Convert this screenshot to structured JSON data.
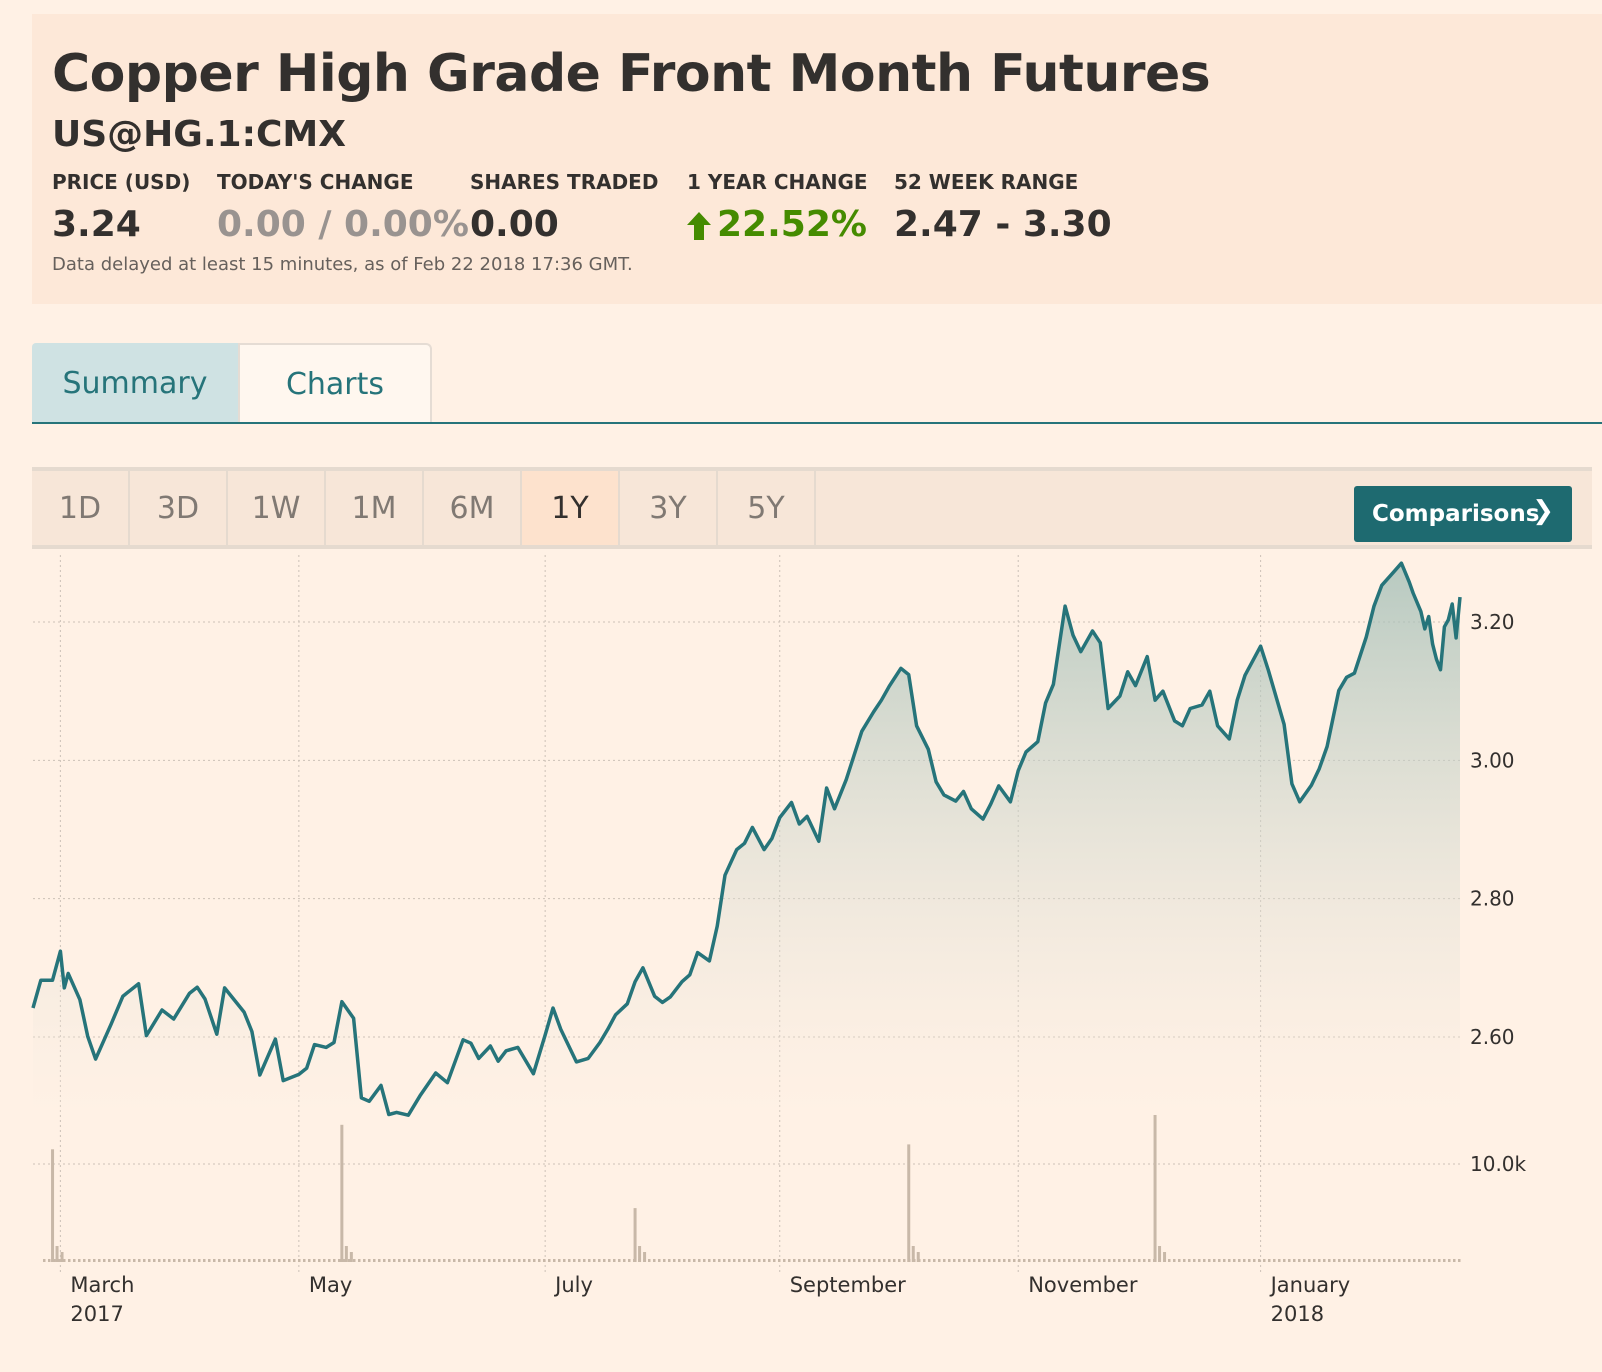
{
  "header": {
    "title": "Copper High Grade Front Month Futures",
    "symbol": "US@HG.1:CMX",
    "stats": {
      "price_label": "PRICE (USD)",
      "price_value": "3.24",
      "change_label": "TODAY'S CHANGE",
      "change_value": "0.00 / 0.00%",
      "shares_label": "SHARES TRADED",
      "shares_value": "0.00",
      "year_label": "1 YEAR CHANGE",
      "year_value": "22.52%",
      "range_label": "52 WEEK RANGE",
      "range_value": "2.47 - 3.30"
    },
    "delayed_note": "Data delayed at least 15 minutes, as of Feb 22 2018 17:36 GMT."
  },
  "tabs": {
    "summary": "Summary",
    "charts": "Charts"
  },
  "ranges": {
    "buttons": [
      "1D",
      "3D",
      "1W",
      "1M",
      "6M",
      "1Y",
      "3Y",
      "5Y"
    ],
    "active": "1Y",
    "comparisons": "Comparisons",
    "comparisons_icon": "chevron-right-icon"
  },
  "colors": {
    "line": "#26747a",
    "accent": "#1e6a70",
    "up": "#458b00",
    "volume": "#c8b8a8"
  },
  "chart_data": {
    "type": "line",
    "title": "",
    "xlabel": "",
    "ylabel": "",
    "ylim": [
      2.47,
      3.32
    ],
    "yticks": [
      2.6,
      2.8,
      3.0,
      3.2
    ],
    "ytick_labels": [
      "2.60",
      "2.80",
      "3.00",
      "3.20"
    ],
    "grid": true,
    "x_start": "2017-02-22",
    "x_end": "2018-02-22",
    "xtick_labels": [
      {
        "date": "2017-03-01",
        "label": "March",
        "sublabel": "2017"
      },
      {
        "date": "2017-05-01",
        "label": "May",
        "sublabel": ""
      },
      {
        "date": "2017-07-03",
        "label": "July",
        "sublabel": ""
      },
      {
        "date": "2017-09-01",
        "label": "September",
        "sublabel": ""
      },
      {
        "date": "2017-11-01",
        "label": "November",
        "sublabel": ""
      },
      {
        "date": "2018-01-02",
        "label": "January",
        "sublabel": "2018"
      }
    ],
    "series": [
      {
        "values": [
          [
            "2017-02-22",
            2.642
          ],
          [
            "2017-02-24",
            2.682
          ],
          [
            "2017-02-27",
            2.682
          ],
          [
            "2017-03-01",
            2.724
          ],
          [
            "2017-03-02",
            2.671
          ],
          [
            "2017-03-03",
            2.692
          ],
          [
            "2017-03-06",
            2.654
          ],
          [
            "2017-03-08",
            2.601
          ],
          [
            "2017-03-10",
            2.568
          ],
          [
            "2017-03-14",
            2.619
          ],
          [
            "2017-03-17",
            2.659
          ],
          [
            "2017-03-21",
            2.677
          ],
          [
            "2017-03-23",
            2.602
          ],
          [
            "2017-03-27",
            2.639
          ],
          [
            "2017-03-30",
            2.626
          ],
          [
            "2017-04-03",
            2.663
          ],
          [
            "2017-04-05",
            2.672
          ],
          [
            "2017-04-07",
            2.655
          ],
          [
            "2017-04-10",
            2.604
          ],
          [
            "2017-04-12",
            2.671
          ],
          [
            "2017-04-17",
            2.636
          ],
          [
            "2017-04-19",
            2.608
          ],
          [
            "2017-04-21",
            2.545
          ],
          [
            "2017-04-25",
            2.597
          ],
          [
            "2017-04-27",
            2.537
          ],
          [
            "2017-05-01",
            2.546
          ],
          [
            "2017-05-03",
            2.555
          ],
          [
            "2017-05-05",
            2.589
          ],
          [
            "2017-05-08",
            2.585
          ],
          [
            "2017-05-10",
            2.592
          ],
          [
            "2017-05-12",
            2.651
          ],
          [
            "2017-05-15",
            2.627
          ],
          [
            "2017-05-17",
            2.512
          ],
          [
            "2017-05-19",
            2.507
          ],
          [
            "2017-05-22",
            2.53
          ],
          [
            "2017-05-24",
            2.488
          ],
          [
            "2017-05-26",
            2.491
          ],
          [
            "2017-05-29",
            2.487
          ],
          [
            "2017-06-01",
            2.515
          ],
          [
            "2017-06-05",
            2.548
          ],
          [
            "2017-06-08",
            2.534
          ],
          [
            "2017-06-12",
            2.596
          ],
          [
            "2017-06-14",
            2.591
          ],
          [
            "2017-06-16",
            2.569
          ],
          [
            "2017-06-19",
            2.587
          ],
          [
            "2017-06-21",
            2.565
          ],
          [
            "2017-06-23",
            2.58
          ],
          [
            "2017-06-26",
            2.585
          ],
          [
            "2017-06-30",
            2.547
          ],
          [
            "2017-07-03",
            2.603
          ],
          [
            "2017-07-05",
            2.642
          ],
          [
            "2017-07-07",
            2.611
          ],
          [
            "2017-07-11",
            2.564
          ],
          [
            "2017-07-14",
            2.569
          ],
          [
            "2017-07-17",
            2.592
          ],
          [
            "2017-07-19",
            2.611
          ],
          [
            "2017-07-21",
            2.632
          ],
          [
            "2017-07-24",
            2.648
          ],
          [
            "2017-07-26",
            2.68
          ],
          [
            "2017-07-28",
            2.7
          ],
          [
            "2017-07-31",
            2.659
          ],
          [
            "2017-08-02",
            2.65
          ],
          [
            "2017-08-04",
            2.658
          ],
          [
            "2017-08-07",
            2.68
          ],
          [
            "2017-08-09",
            2.69
          ],
          [
            "2017-08-11",
            2.722
          ],
          [
            "2017-08-14",
            2.71
          ],
          [
            "2017-08-16",
            2.76
          ],
          [
            "2017-08-18",
            2.834
          ],
          [
            "2017-08-21",
            2.871
          ],
          [
            "2017-08-23",
            2.88
          ],
          [
            "2017-08-25",
            2.903
          ],
          [
            "2017-08-28",
            2.871
          ],
          [
            "2017-08-30",
            2.887
          ],
          [
            "2017-09-01",
            2.917
          ],
          [
            "2017-09-04",
            2.939
          ],
          [
            "2017-09-06",
            2.908
          ],
          [
            "2017-09-08",
            2.919
          ],
          [
            "2017-09-11",
            2.883
          ],
          [
            "2017-09-13",
            2.96
          ],
          [
            "2017-09-15",
            2.93
          ],
          [
            "2017-09-18",
            2.972
          ],
          [
            "2017-09-20",
            3.007
          ],
          [
            "2017-09-22",
            3.042
          ],
          [
            "2017-09-25",
            3.07
          ],
          [
            "2017-09-27",
            3.087
          ],
          [
            "2017-09-29",
            3.107
          ],
          [
            "2017-10-02",
            3.133
          ],
          [
            "2017-10-04",
            3.124
          ],
          [
            "2017-10-06",
            3.05
          ],
          [
            "2017-10-09",
            3.016
          ],
          [
            "2017-10-11",
            2.969
          ],
          [
            "2017-10-13",
            2.95
          ],
          [
            "2017-10-16",
            2.941
          ],
          [
            "2017-10-18",
            2.955
          ],
          [
            "2017-10-20",
            2.93
          ],
          [
            "2017-10-23",
            2.915
          ],
          [
            "2017-10-25",
            2.937
          ],
          [
            "2017-10-27",
            2.963
          ],
          [
            "2017-10-30",
            2.94
          ],
          [
            "2017-11-01",
            2.985
          ],
          [
            "2017-11-03",
            3.012
          ],
          [
            "2017-11-06",
            3.027
          ],
          [
            "2017-11-08",
            3.083
          ],
          [
            "2017-11-10",
            3.11
          ],
          [
            "2017-11-13",
            3.223
          ],
          [
            "2017-11-15",
            3.181
          ],
          [
            "2017-11-17",
            3.157
          ],
          [
            "2017-11-20",
            3.187
          ],
          [
            "2017-11-22",
            3.17
          ],
          [
            "2017-11-24",
            3.075
          ],
          [
            "2017-11-27",
            3.093
          ],
          [
            "2017-11-29",
            3.128
          ],
          [
            "2017-12-01",
            3.108
          ],
          [
            "2017-12-04",
            3.15
          ],
          [
            "2017-12-06",
            3.087
          ],
          [
            "2017-12-08",
            3.1
          ],
          [
            "2017-12-11",
            3.057
          ],
          [
            "2017-12-13",
            3.05
          ],
          [
            "2017-12-15",
            3.075
          ],
          [
            "2017-12-18",
            3.08
          ],
          [
            "2017-12-20",
            3.1
          ],
          [
            "2017-12-22",
            3.05
          ],
          [
            "2017-12-25",
            3.031
          ],
          [
            "2017-12-27",
            3.087
          ],
          [
            "2017-12-29",
            3.123
          ],
          [
            "2018-01-02",
            3.165
          ],
          [
            "2018-01-04",
            3.13
          ],
          [
            "2018-01-08",
            3.052
          ],
          [
            "2018-01-10",
            2.966
          ],
          [
            "2018-01-12",
            2.94
          ],
          [
            "2018-01-15",
            2.964
          ],
          [
            "2018-01-17",
            2.988
          ],
          [
            "2018-01-19",
            3.02
          ],
          [
            "2018-01-22",
            3.101
          ],
          [
            "2018-01-24",
            3.12
          ],
          [
            "2018-01-26",
            3.126
          ],
          [
            "2018-01-29",
            3.178
          ],
          [
            "2018-01-31",
            3.223
          ],
          [
            "2018-02-02",
            3.253
          ],
          [
            "2018-02-05",
            3.272
          ],
          [
            "2018-02-07",
            3.285
          ],
          [
            "2018-02-09",
            3.258
          ],
          [
            "2018-02-10",
            3.242
          ],
          [
            "2018-02-12",
            3.215
          ],
          [
            "2018-02-13",
            3.19
          ],
          [
            "2018-02-14",
            3.208
          ],
          [
            "2018-02-15",
            3.168
          ],
          [
            "2018-02-16",
            3.146
          ],
          [
            "2018-02-17",
            3.131
          ],
          [
            "2018-02-18",
            3.193
          ],
          [
            "2018-02-19",
            3.203
          ],
          [
            "2018-02-20",
            3.226
          ],
          [
            "2018-02-21",
            3.177
          ],
          [
            "2018-02-22",
            3.236
          ]
        ]
      }
    ],
    "volume": {
      "ytick_label": "10.0k",
      "ytick_value": 10000,
      "ymax": 15000,
      "spikes": [
        [
          "2017-02-27",
          11500
        ],
        [
          "2017-05-12",
          14000
        ],
        [
          "2017-07-26",
          5500
        ],
        [
          "2017-10-04",
          12000
        ],
        [
          "2017-12-06",
          15000
        ]
      ]
    }
  }
}
